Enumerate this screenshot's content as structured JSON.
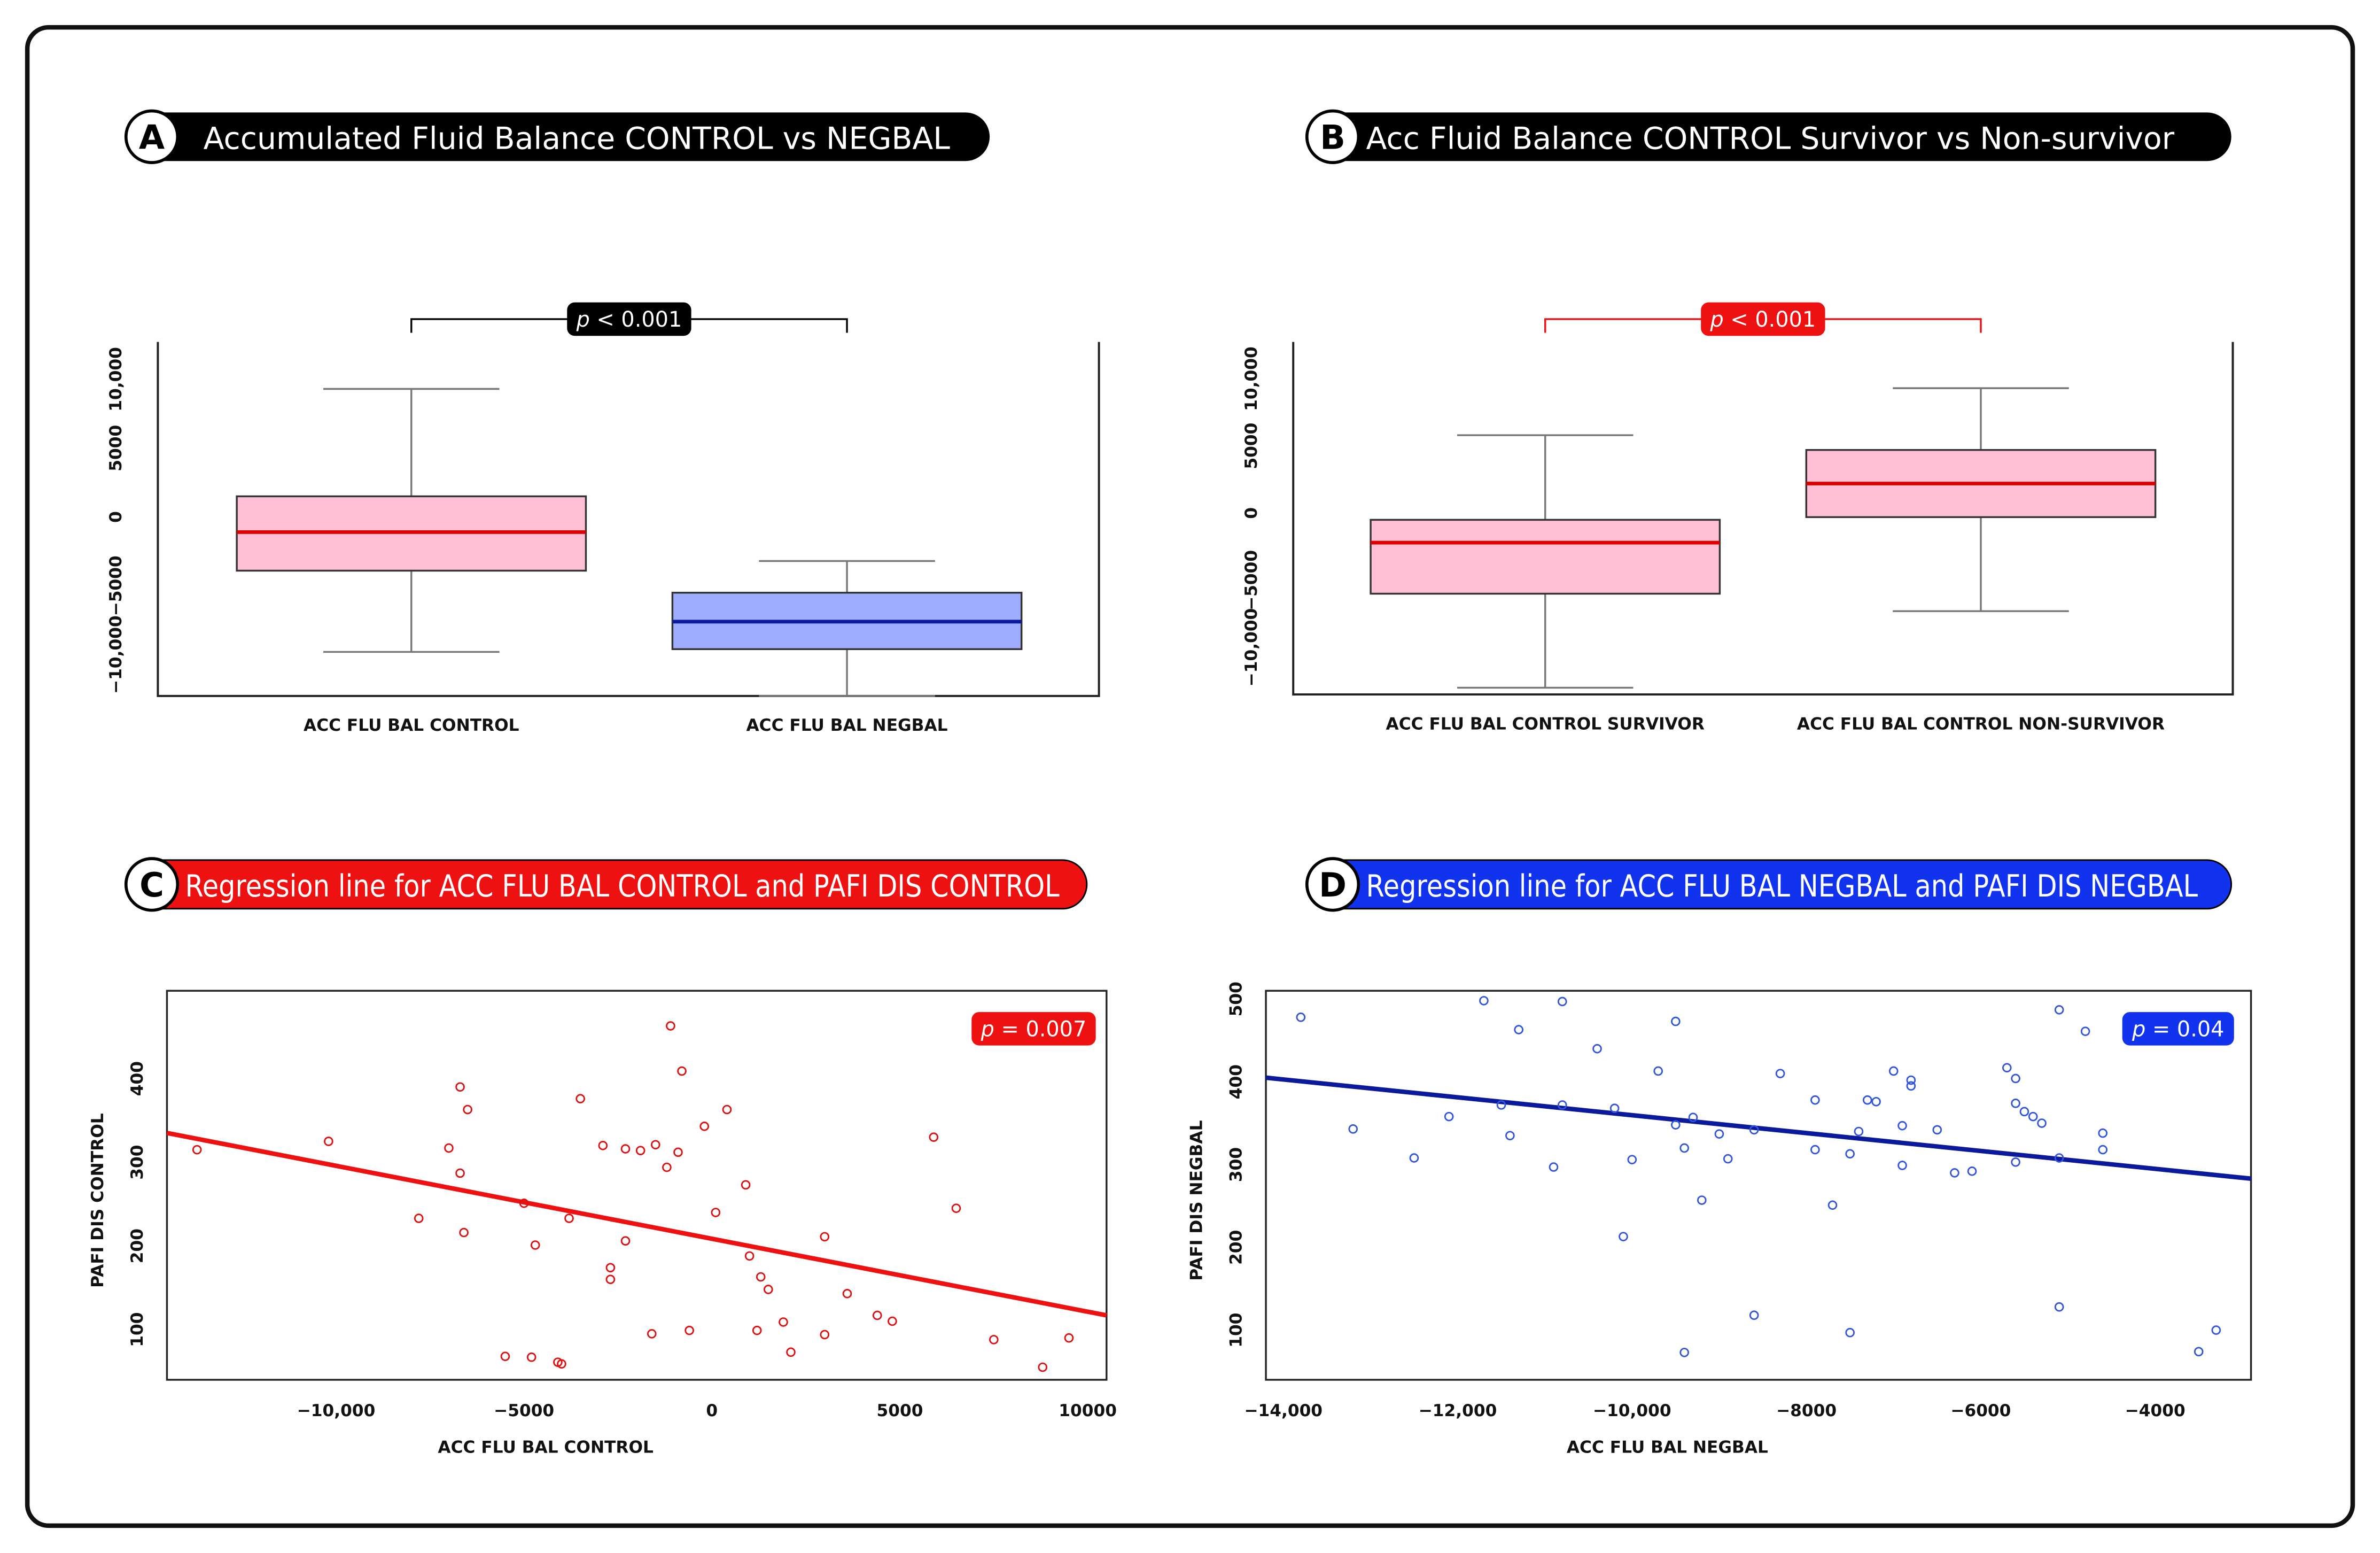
{
  "panels": [
    {
      "letter": "A",
      "title": "Accumulated Fluid Balance CONTROL vs NEGBAL",
      "banner_color": "#000000",
      "p_text": "p < 0.001",
      "p_color": "#000000"
    },
    {
      "letter": "B",
      "title": "Acc Fluid Balance CONTROL Survivor vs Non-survivor",
      "banner_color": "#000000",
      "p_text": "p < 0.001",
      "p_color": "#ee1111"
    },
    {
      "letter": "C",
      "title": "Regression line for ACC FLU BAL CONTROL and PAFI DIS CONTROL",
      "banner_color": "#ee1111",
      "p_text": "p = 0.007",
      "p_color": "#ee1111"
    },
    {
      "letter": "D",
      "title": "Regression line for ACC FLU BAL NEGBAL and PAFI DIS NEGBAL",
      "banner_color": "#1133ee",
      "p_text": "p = 0.04",
      "p_color": "#1133ee"
    }
  ],
  "chart_data": [
    {
      "type": "box",
      "categories": [
        "ACC FLU BAL CONTROL",
        "ACC FLU BAL NEGBAL"
      ],
      "yticks": [
        -10000,
        -5000,
        0,
        5000,
        10000
      ],
      "ytick_labels": [
        "−10,000",
        "−5000",
        "0",
        "5000",
        "10,000"
      ],
      "ylim": [
        -13000,
        11500
      ],
      "boxes": [
        {
          "whisker_low": -9800,
          "q1": -3900,
          "median": -1100,
          "q3": 1500,
          "whisker_high": 9300,
          "fill": "#ffc0d5",
          "median_color": "#dd0000"
        },
        {
          "whisker_low": -13000,
          "q1": -9600,
          "median": -7600,
          "q3": -5500,
          "whisker_high": -3200,
          "fill": "#9fadff",
          "median_color": "#0a1a9a"
        }
      ],
      "significance": {
        "from": 0,
        "to": 1,
        "label": "p < 0.001"
      }
    },
    {
      "type": "box",
      "categories": [
        "ACC FLU BAL CONTROL SURVIVOR",
        "ACC FLU BAL CONTROL NON-SURVIVOR"
      ],
      "yticks": [
        -10000,
        -5000,
        0,
        5000,
        10000
      ],
      "ytick_labels": [
        "−10,000",
        "−5000",
        "0",
        "5000",
        "10,000"
      ],
      "ylim": [
        -13500,
        11500
      ],
      "boxes": [
        {
          "whisker_low": -13000,
          "q1": -6000,
          "median": -2200,
          "q3": -500,
          "whisker_high": 5800,
          "fill": "#ffc0d5",
          "median_color": "#dd0000"
        },
        {
          "whisker_low": -7300,
          "q1": -300,
          "median": 2200,
          "q3": 4700,
          "whisker_high": 9300,
          "fill": "#ffc0d5",
          "median_color": "#dd0000"
        }
      ],
      "significance": {
        "from": 0,
        "to": 1,
        "label": "p < 0.001"
      }
    },
    {
      "type": "scatter",
      "xlabel": "ACC FLU BAL CONTROL",
      "ylabel": "PAFI DIS CONTROL",
      "xticks": [
        -10000,
        -5000,
        0,
        5000,
        10000
      ],
      "xtick_labels": [
        "−10,000",
        "−5000",
        "0",
        "5000",
        "10000"
      ],
      "yticks": [
        100,
        200,
        300,
        400
      ],
      "ytick_labels": [
        "100",
        "200",
        "300",
        "400"
      ],
      "xlim": [
        -14500,
        10500
      ],
      "ylim": [
        40,
        505
      ],
      "point_color": "#dd1111",
      "line_color": "#ee1111",
      "regression": {
        "x0": -14500,
        "y0": 335,
        "x1": 10500,
        "y1": 117
      },
      "points": [
        [
          -13700,
          315
        ],
        [
          -10200,
          325
        ],
        [
          -7800,
          233
        ],
        [
          -7000,
          317
        ],
        [
          -6700,
          287
        ],
        [
          -6700,
          390
        ],
        [
          -6600,
          216
        ],
        [
          -6500,
          363
        ],
        [
          -5500,
          68
        ],
        [
          -5000,
          251
        ],
        [
          -4800,
          67
        ],
        [
          -4700,
          201
        ],
        [
          -4100,
          61
        ],
        [
          -4000,
          59
        ],
        [
          -3800,
          233
        ],
        [
          -3500,
          376
        ],
        [
          -2900,
          320
        ],
        [
          -2700,
          174
        ],
        [
          -2700,
          160
        ],
        [
          -2300,
          206
        ],
        [
          -2300,
          316
        ],
        [
          -1900,
          314
        ],
        [
          -1600,
          95
        ],
        [
          -1500,
          321
        ],
        [
          -1200,
          294
        ],
        [
          -1100,
          463
        ],
        [
          -900,
          312
        ],
        [
          -800,
          409
        ],
        [
          -600,
          99
        ],
        [
          -200,
          343
        ],
        [
          100,
          240
        ],
        [
          400,
          363
        ],
        [
          900,
          273
        ],
        [
          1000,
          188
        ],
        [
          1200,
          99
        ],
        [
          1300,
          163
        ],
        [
          1500,
          148
        ],
        [
          1900,
          109
        ],
        [
          2100,
          73
        ],
        [
          3000,
          211
        ],
        [
          3000,
          94
        ],
        [
          3600,
          143
        ],
        [
          4400,
          117
        ],
        [
          4800,
          110
        ],
        [
          5900,
          330
        ],
        [
          6500,
          245
        ],
        [
          7500,
          88
        ],
        [
          8800,
          55
        ],
        [
          9500,
          90
        ]
      ]
    },
    {
      "type": "scatter",
      "xlabel": "ACC FLU BAL NEGBAL",
      "ylabel": "PAFI DIS NEGBAL",
      "xticks": [
        -14000,
        -12000,
        -10000,
        -8000,
        -6000,
        -4000
      ],
      "xtick_labels": [
        "−14,000",
        "−12,000",
        "−10,000",
        "−8000",
        "−6000",
        "−4000"
      ],
      "yticks": [
        100,
        200,
        300,
        400,
        500
      ],
      "ytick_labels": [
        "100",
        "200",
        "300",
        "400",
        "500"
      ],
      "xlim": [
        -14200,
        -2900
      ],
      "ylim": [
        40,
        510
      ],
      "point_color": "#3355dd",
      "line_color": "#0a1a9a",
      "regression": {
        "x0": -14200,
        "y0": 405,
        "x1": -2900,
        "y1": 283
      },
      "points": [
        [
          -13800,
          478
        ],
        [
          -13200,
          343
        ],
        [
          -12500,
          308
        ],
        [
          -12100,
          358
        ],
        [
          -11700,
          498
        ],
        [
          -11500,
          372
        ],
        [
          -11400,
          335
        ],
        [
          -11300,
          463
        ],
        [
          -10900,
          297
        ],
        [
          -10800,
          372
        ],
        [
          -10800,
          497
        ],
        [
          -10400,
          440
        ],
        [
          -10200,
          368
        ],
        [
          -10100,
          213
        ],
        [
          -10000,
          306
        ],
        [
          -9700,
          413
        ],
        [
          -9500,
          473
        ],
        [
          -9500,
          348
        ],
        [
          -9400,
          320
        ],
        [
          -9400,
          73
        ],
        [
          -9300,
          357
        ],
        [
          -9200,
          257
        ],
        [
          -9000,
          337
        ],
        [
          -8900,
          307
        ],
        [
          -8600,
          118
        ],
        [
          -8600,
          342
        ],
        [
          -8300,
          410
        ],
        [
          -7900,
          318
        ],
        [
          -7900,
          378
        ],
        [
          -7700,
          251
        ],
        [
          -7500,
          313
        ],
        [
          -7500,
          97
        ],
        [
          -7400,
          340
        ],
        [
          -7300,
          378
        ],
        [
          -7200,
          376
        ],
        [
          -7000,
          413
        ],
        [
          -6900,
          347
        ],
        [
          -6900,
          299
        ],
        [
          -6800,
          402
        ],
        [
          -6800,
          395
        ],
        [
          -6500,
          342
        ],
        [
          -6300,
          290
        ],
        [
          -6100,
          292
        ],
        [
          -5700,
          417
        ],
        [
          -5600,
          303
        ],
        [
          -5600,
          404
        ],
        [
          -5600,
          374
        ],
        [
          -5500,
          364
        ],
        [
          -5400,
          358
        ],
        [
          -5300,
          350
        ],
        [
          -5100,
          308
        ],
        [
          -5100,
          487
        ],
        [
          -5100,
          128
        ],
        [
          -4800,
          461
        ],
        [
          -4600,
          338
        ],
        [
          -4600,
          318
        ],
        [
          -3500,
          74
        ],
        [
          -3300,
          100
        ]
      ]
    }
  ]
}
